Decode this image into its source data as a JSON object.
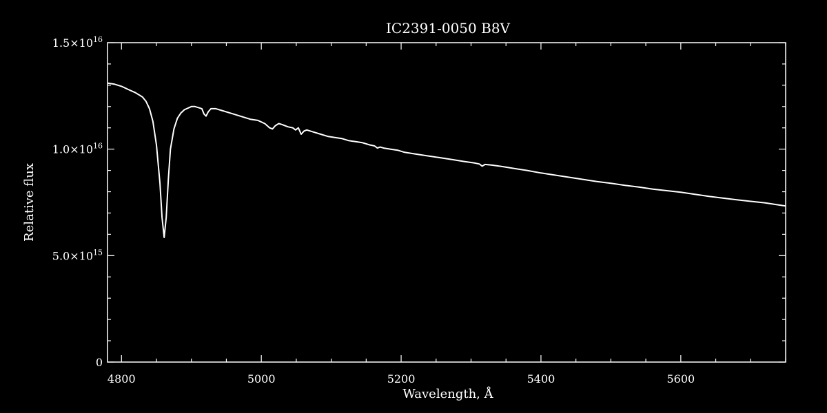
{
  "chart_data": {
    "type": "line",
    "title": "IC2391-0050   B8V",
    "xlabel": "Wavelength, Å",
    "ylabel": "Relative flux",
    "xlim": [
      4780,
      5750
    ],
    "ylim": [
      0,
      1.5e+16
    ],
    "x_ticks": [
      {
        "value": 4800,
        "label": "4800"
      },
      {
        "value": 5000,
        "label": "5000"
      },
      {
        "value": 5200,
        "label": "5200"
      },
      {
        "value": 5400,
        "label": "5400"
      },
      {
        "value": 5600,
        "label": "5600"
      }
    ],
    "y_ticks": [
      {
        "value": 0,
        "mantissa": "0",
        "exponent": ""
      },
      {
        "value": 5000000000000000.0,
        "mantissa": "5.0×10",
        "exponent": "15"
      },
      {
        "value": 1e+16,
        "mantissa": "1.0×10",
        "exponent": "16"
      },
      {
        "value": 1.5e+16,
        "mantissa": "1.5×10",
        "exponent": "16"
      }
    ],
    "grid": false,
    "colors": {
      "background": "#000000",
      "foreground": "#ffffff",
      "line": "#ffffff"
    },
    "series": [
      {
        "x": [
          4780,
          4790,
          4800,
          4810,
          4820,
          4830,
          4835,
          4840,
          4845,
          4850,
          4855,
          4858,
          4861,
          4864,
          4867,
          4870,
          4875,
          4880,
          4885,
          4890,
          4900,
          4905,
          4910,
          4915,
          4918,
          4921,
          4924,
          4928,
          4935,
          4945,
          4955,
          4965,
          4975,
          4985,
          4995,
          5005,
          5012,
          5016,
          5020,
          5025,
          5030,
          5038,
          5045,
          5049,
          5053,
          5057,
          5061,
          5065,
          5075,
          5085,
          5095,
          5105,
          5115,
          5125,
          5135,
          5145,
          5155,
          5162,
          5166,
          5170,
          5175,
          5185,
          5195,
          5205,
          5215,
          5230,
          5245,
          5260,
          5275,
          5290,
          5305,
          5312,
          5316,
          5320,
          5330,
          5345,
          5360,
          5380,
          5400,
          5420,
          5440,
          5460,
          5480,
          5500,
          5520,
          5540,
          5560,
          5580,
          5600,
          5620,
          5640,
          5660,
          5680,
          5700,
          5720,
          5740,
          5750
        ],
        "y": [
          1.31e+16,
          1.305e+16,
          1.295e+16,
          1.28e+16,
          1.265e+16,
          1.245e+16,
          1.225e+16,
          1.19e+16,
          1.13e+16,
          1.02e+16,
          8400000000000000.0,
          6800000000000000.0,
          5850000000000000.0,
          6800000000000000.0,
          8600000000000000.0,
          1e+16,
          1.095e+16,
          1.145e+16,
          1.17e+16,
          1.185e+16,
          1.2e+16,
          1.2e+16,
          1.195e+16,
          1.19e+16,
          1.165e+16,
          1.155e+16,
          1.175e+16,
          1.19e+16,
          1.19e+16,
          1.18e+16,
          1.17e+16,
          1.16e+16,
          1.15e+16,
          1.14e+16,
          1.135e+16,
          1.12e+16,
          1.1e+16,
          1.095e+16,
          1.11e+16,
          1.12e+16,
          1.115e+16,
          1.105e+16,
          1.1e+16,
          1.09e+16,
          1.1e+16,
          1.07e+16,
          1.085e+16,
          1.09e+16,
          1.08e+16,
          1.07e+16,
          1.06e+16,
          1.055e+16,
          1.05e+16,
          1.04e+16,
          1.035e+16,
          1.03e+16,
          1.02e+16,
          1.015e+16,
          1.005e+16,
          1.01e+16,
          1.005e+16,
          1e+16,
          9950000000000000.0,
          9850000000000000.0,
          9800000000000000.0,
          9720000000000000.0,
          9650000000000000.0,
          9580000000000000.0,
          9500000000000000.0,
          9420000000000000.0,
          9350000000000000.0,
          9300000000000000.0,
          9200000000000000.0,
          9280000000000000.0,
          9250000000000000.0,
          9180000000000000.0,
          9100000000000000.0,
          9000000000000000.0,
          8880000000000000.0,
          8780000000000000.0,
          8680000000000000.0,
          8580000000000000.0,
          8480000000000000.0,
          8400000000000000.0,
          8300000000000000.0,
          8220000000000000.0,
          8120000000000000.0,
          8050000000000000.0,
          7980000000000000.0,
          7880000000000000.0,
          7780000000000000.0,
          7700000000000000.0,
          7620000000000000.0,
          7550000000000000.0,
          7480000000000000.0,
          7380000000000000.0,
          7330000000000000.0
        ]
      }
    ]
  }
}
